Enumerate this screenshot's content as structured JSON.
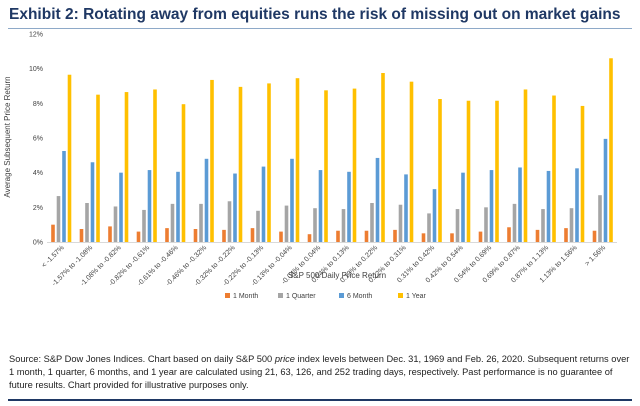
{
  "header": {
    "title": "Exhibit 2:  Rotating away from equities runs the risk of missing out on market gains"
  },
  "chart_data": {
    "type": "bar",
    "title": "",
    "xlabel": "S&P 500 Daily Price Return",
    "ylabel": "Average Subsequent Price Return",
    "ylim": [
      0,
      12
    ],
    "yticks": [
      0,
      2,
      4,
      6,
      8,
      10,
      12
    ],
    "ytick_format": "percent",
    "grid": false,
    "legend_position": "bottom",
    "categories": [
      "< -1.57%",
      "-1.57% to -1.08%",
      "-1.08% to -0.82%",
      "-0.82% to -0.61%",
      "-0.61% to -0.46%",
      "-0.46% to -0.32%",
      "-0.32% to -0.22%",
      "-0.22% to -0.13%",
      "-0.13% to -0.04%",
      "-0.04% to 0.04%",
      "0.04% to 0.13%",
      "0.13% to 0.22%",
      "0.22% to 0.31%",
      "0.31% to 0.42%",
      "0.42% to 0.54%",
      "0.54% to 0.69%",
      "0.69% to 0.87%",
      "0.87% to 1.13%",
      "1.13% to 1.56%",
      "> 1.56%"
    ],
    "series": [
      {
        "name": "1 Month",
        "color": "#ed7d31",
        "values": [
          1.0,
          0.75,
          0.9,
          0.6,
          0.8,
          0.75,
          0.7,
          0.8,
          0.6,
          0.45,
          0.65,
          0.65,
          0.7,
          0.5,
          0.5,
          0.6,
          0.85,
          0.7,
          0.8,
          0.65
        ]
      },
      {
        "name": "1 Quarter",
        "color": "#a5a5a5",
        "values": [
          2.65,
          2.25,
          2.05,
          1.85,
          2.2,
          2.2,
          2.35,
          1.8,
          2.1,
          1.95,
          1.9,
          2.25,
          2.15,
          1.65,
          1.9,
          2.0,
          2.2,
          1.9,
          1.95,
          2.7
        ]
      },
      {
        "name": "6 Month",
        "color": "#5b9bd5",
        "values": [
          5.25,
          4.6,
          4.0,
          4.15,
          4.05,
          4.8,
          3.95,
          4.35,
          4.8,
          4.15,
          4.05,
          4.85,
          3.9,
          3.05,
          4.0,
          4.15,
          4.3,
          4.1,
          4.25,
          5.95
        ]
      },
      {
        "name": "1 Year",
        "color": "#ffc000",
        "values": [
          9.65,
          8.5,
          8.65,
          8.8,
          7.95,
          9.35,
          8.95,
          9.15,
          9.45,
          8.75,
          8.85,
          9.75,
          9.25,
          8.25,
          8.15,
          8.15,
          8.8,
          8.45,
          7.85,
          10.6
        ]
      }
    ]
  },
  "source": {
    "text_before": "Source:  S&P Dow Jones Indices.  Chart based on daily S&P 500 ",
    "text_italic": "price",
    "text_after": " index levels between Dec. 31, 1969 and Feb. 26, 2020.  Subsequent returns over 1 month, 1 quarter, 6 months, and 1 year are calculated using 21, 63, 126, and 252 trading days, respectively. Past performance is no guarantee of future results.  Chart provided for illustrative purposes only."
  }
}
